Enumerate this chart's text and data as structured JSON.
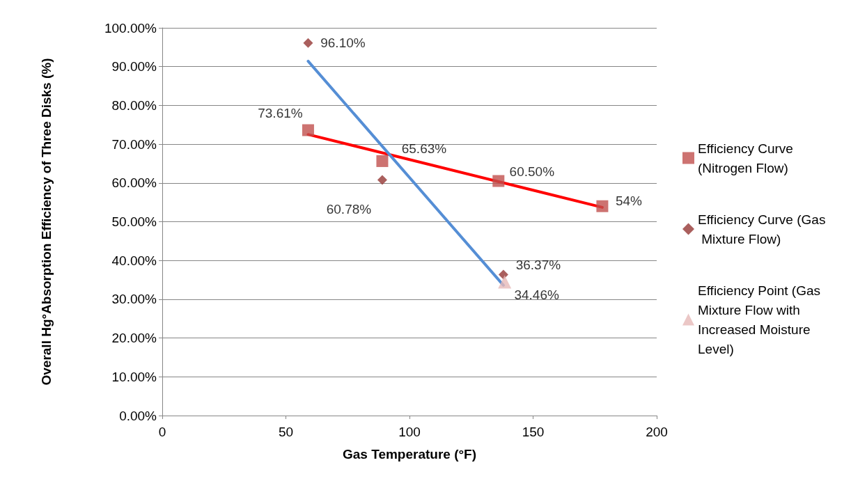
{
  "chart_data": {
    "type": "scatter",
    "xlabel": "Gas Temperature (°F)",
    "ylabel": "Overall Hg°Absorption Efficiency of Three Disks (%)",
    "xlim": [
      0,
      200
    ],
    "xticks": [
      0,
      50,
      100,
      150,
      200
    ],
    "ylim": [
      0,
      100
    ],
    "yticks": [
      {
        "value": 0,
        "label": "0.00%"
      },
      {
        "value": 10,
        "label": "10.00%"
      },
      {
        "value": 20,
        "label": "20.00%"
      },
      {
        "value": 30,
        "label": "30.00%"
      },
      {
        "value": 40,
        "label": "40.00%"
      },
      {
        "value": 50,
        "label": "50.00%"
      },
      {
        "value": 60,
        "label": "60.00%"
      },
      {
        "value": 70,
        "label": "70.00%"
      },
      {
        "value": 80,
        "label": "80.00%"
      },
      {
        "value": 90,
        "label": "90.00%"
      },
      {
        "value": 100,
        "label": "100.00%"
      }
    ],
    "grid": "y",
    "legend": "right",
    "series": [
      {
        "name": "Efficiency Curve (Nitrogen Flow)",
        "marker": "square",
        "color": "#c0504d",
        "x": [
          59,
          89,
          136,
          178
        ],
        "values": [
          73.61,
          65.63,
          60.5,
          54
        ],
        "value_labels": [
          "73.61%",
          "65.63%",
          "60.50%",
          "54%"
        ]
      },
      {
        "name": "Efficiency Curve (Gas Mixture Flow)",
        "marker": "diamond",
        "color": "#953735",
        "x": [
          59,
          89,
          138
        ],
        "values": [
          96.1,
          60.78,
          36.37
        ],
        "value_labels": [
          "96.10%",
          "60.78%",
          "36.37%"
        ]
      },
      {
        "name": "Efficiency Point (Gas Mixture Flow with Increased Moisture Level)",
        "marker": "triangle",
        "color": "#e6b9b8",
        "x": [
          138.5
        ],
        "values": [
          34.46
        ],
        "value_labels": [
          "34.46%"
        ]
      },
      {
        "type": "line",
        "marker": "none",
        "color": "#ff0000",
        "x": [
          59,
          178
        ],
        "values": [
          72.5,
          53.7
        ]
      },
      {
        "type": "line",
        "marker": "none",
        "color": "#558ed5",
        "x": [
          59,
          138
        ],
        "values": [
          91.4,
          33.6
        ]
      }
    ]
  }
}
